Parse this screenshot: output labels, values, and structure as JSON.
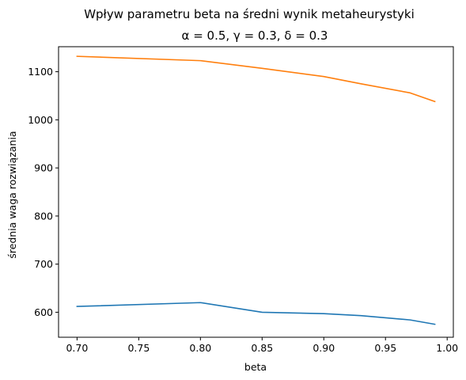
{
  "chart_data": {
    "type": "line",
    "title": "Wpływ parametru beta na średni wynik metaheurystyki",
    "subtitle": "α = 0.5, γ = 0.3, δ = 0.3",
    "xlabel": "beta",
    "ylabel": "średnia waga rozwiązania",
    "xlim": [
      0.685,
      1.005
    ],
    "ylim": [
      548,
      1152
    ],
    "xticks": [
      0.7,
      0.75,
      0.8,
      0.85,
      0.9,
      0.95,
      1.0
    ],
    "xtick_labels": [
      "0.70",
      "0.75",
      "0.80",
      "0.85",
      "0.90",
      "0.95",
      "1.00"
    ],
    "yticks": [
      600,
      700,
      800,
      900,
      1000,
      1100
    ],
    "ytick_labels": [
      "600",
      "700",
      "800",
      "900",
      "1000",
      "1100"
    ],
    "grid": false,
    "x": [
      0.7,
      0.8,
      0.85,
      0.9,
      0.93,
      0.97,
      0.99
    ],
    "series": [
      {
        "color": "#1f77b4",
        "values": [
          612,
          620,
          600,
          597,
          593,
          584,
          575
        ]
      },
      {
        "color": "#ff7f0e",
        "values": [
          1132,
          1123,
          1107,
          1090,
          1075,
          1056,
          1038
        ]
      }
    ]
  }
}
